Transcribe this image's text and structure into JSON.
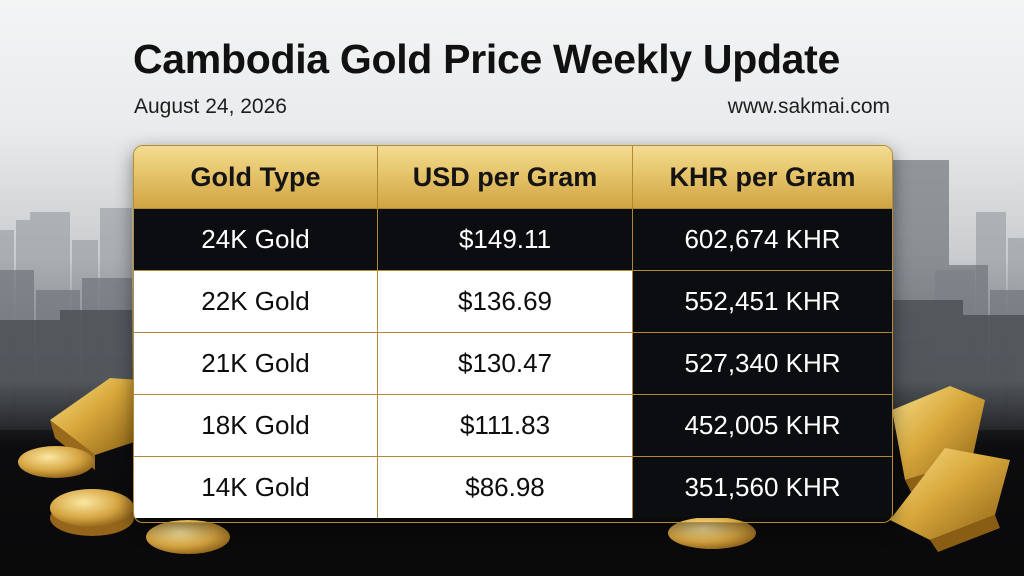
{
  "header": {
    "title": "Cambodia Gold Price Weekly Update",
    "date": "August 24, 2026",
    "website": "www.sakmai.com"
  },
  "table": {
    "columns": [
      "Gold Type",
      "USD per Gram",
      "KHR per Gram"
    ],
    "rows": [
      [
        "24K Gold",
        "$149.11",
        "602,674 KHR"
      ],
      [
        "22K Gold",
        "$136.69",
        "552,451 KHR"
      ],
      [
        "21K Gold",
        "$130.47",
        "527,340 KHR"
      ],
      [
        "18K Gold",
        "$111.83",
        "452,005 KHR"
      ],
      [
        "14K Gold",
        "$86.98",
        "351,560 KHR"
      ]
    ]
  },
  "colors": {
    "gold_header": "#e6c46a",
    "gold_border": "#b08a33",
    "dark_cell": "#0c0d10",
    "light_cell": "#ffffff"
  }
}
